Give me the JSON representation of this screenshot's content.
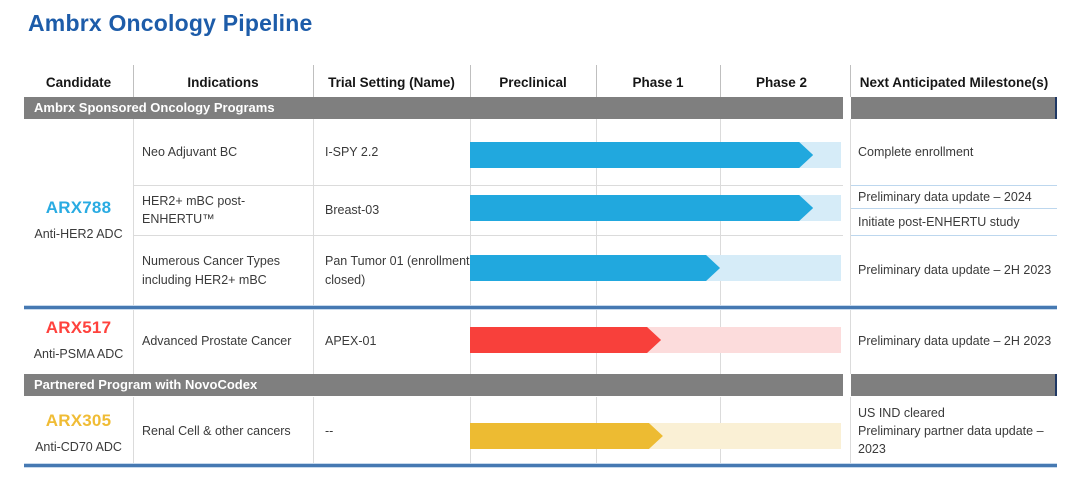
{
  "title": "Ambrx Oncology Pipeline",
  "header": {
    "columns": [
      "Candidate",
      "Indications",
      "Trial Setting (Name)",
      "Preclinical",
      "Phase 1",
      "Phase 2",
      "Next Anticipated Milestone(s)"
    ]
  },
  "sections": [
    {
      "label": "Ambrx Sponsored Oncology Programs"
    },
    {
      "label": "Partnered Program with NovoCodex"
    }
  ],
  "candidates": [
    {
      "name": "ARX788",
      "moa": "Anti-HER2 ADC",
      "color": "#29abe2"
    },
    {
      "name": "ARX517",
      "moa": "Anti-PSMA ADC",
      "color": "#ff423d"
    },
    {
      "name": "ARX305",
      "moa": "Anti-CD70 ADC",
      "color": "#f0bc35"
    }
  ],
  "colors": {
    "title": "#1d5ca9",
    "section_band": "#7f7f7f",
    "band_right_edge": "#1f3864",
    "blue_rule": "#4679b2",
    "grid": "#dbdbdb",
    "milestone_divider": "#bdd7ee"
  },
  "chart_data": {
    "type": "table",
    "title": "Ambrx Oncology Pipeline",
    "phase_axis": [
      "Preclinical",
      "Phase 1",
      "Phase 2"
    ],
    "track_units": "percent of Preclinical-through-Phase-2 track",
    "phase_boundaries_pct": {
      "preclinical_end": 34,
      "phase1_end": 67.4
    },
    "rows": [
      {
        "candidate": "ARX788",
        "indication": "Neo Adjuvant BC",
        "trial": "I-SPY 2.2",
        "stage_reached": "Phase 2",
        "progress_pct": 92.5,
        "bar_color": "#21a8de",
        "tail_color": "#d6ecf8",
        "milestones": [
          "Complete enrollment"
        ]
      },
      {
        "candidate": "ARX788",
        "indication": "HER2+ mBC post-ENHERTU™",
        "trial": "Breast-03",
        "stage_reached": "Phase 2",
        "progress_pct": 92.5,
        "bar_color": "#21a8de",
        "tail_color": "#d6ecf8",
        "milestones": [
          "Preliminary data update – 2024",
          "Initiate post-ENHERTU study"
        ]
      },
      {
        "candidate": "ARX788",
        "indication": "Numerous Cancer Types including HER2+ mBC",
        "trial": "Pan Tumor 01 (enrollment closed)",
        "stage_reached": "Phase 1 / entering Phase 2",
        "progress_pct": 67.4,
        "bar_color": "#21a8de",
        "tail_color": "#d6ecf8",
        "milestones": [
          "Preliminary data update – 2H 2023"
        ]
      },
      {
        "candidate": "ARX517",
        "indication": "Advanced Prostate Cancer",
        "trial": "APEX-01",
        "stage_reached": "Phase 1",
        "progress_pct": 51.5,
        "bar_color": "#f8403b",
        "tail_color": "#fcdcdc",
        "milestones": [
          "Preliminary data update – 2H 2023"
        ]
      },
      {
        "candidate": "ARX305",
        "indication": "Renal Cell & other cancers",
        "trial": "--",
        "stage_reached": "Phase 1",
        "progress_pct": 52,
        "bar_color": "#edbb32",
        "tail_color": "#faf0d5",
        "milestones": [
          "US IND cleared",
          "Preliminary partner data update – 2023"
        ]
      }
    ]
  }
}
